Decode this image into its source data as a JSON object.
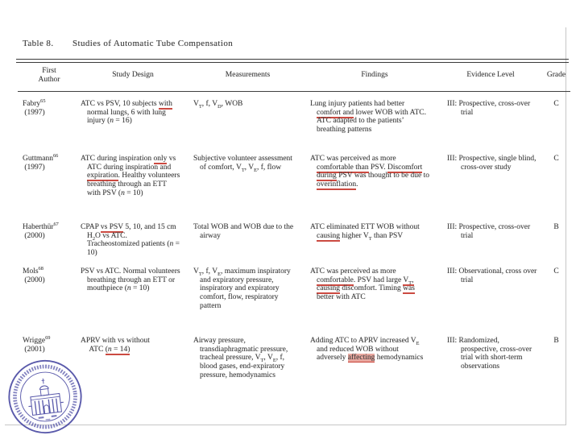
{
  "title": {
    "label": "Table 8.",
    "text": "Studies of Automatic Tube Compensation"
  },
  "table": {
    "headers": {
      "author": "First\nAuthor",
      "design": "Study Design",
      "measurements": "Measurements",
      "findings": "Findings",
      "evidence": "Evidence Level",
      "grade": "Grade"
    },
    "rows": [
      {
        "author": "Fabry^65^\n (1997)",
        "design": "ATC vs PSV, 10 subjects ~with~ normal lungs, 6 with lung injury (*n* = 16)",
        "measurements": "V{T}, f, V{D}, WOB",
        "findings": "Lung injury patients had better ~comfort and~ lower WOB with ATC. ATC adapted to the patients’ breathing patterns",
        "evidence": "III: Prospective, cross-over trial",
        "grade": "C"
      },
      {
        "author": "Guttmann^66^\n (1997)",
        "design": "ATC during inspiration ~only~ vs ATC during inspiration and ~expiration~. Healthy volunteers breathing through an ETT with PSV (*n* = 10)",
        "measurements": "Subjective volunteer assessment of comfort, V{T}, V{E}, f, flow",
        "findings": "ATC was perceived as more ~comfortable than~ PSV. ~Discomfort during~ PSV was thought to be due to ~overinflation~.",
        "evidence": "III: Prospective, single blind, cross-over study",
        "grade": "C"
      },
      {
        "author": "Haberthür^67^\n (2000)",
        "design": "CPAP ~vs PSV~ 5, 10, and 15 cm H{2}O vs ATC. Tracheostomized patients (*n* = 10)",
        "measurements": "Total WOB and WOB due to the airway",
        "findings": "ATC eliminated ETT WOB without ~causing~ higher V{T} than PSV",
        "evidence": "III: Prospective, cross-over trial",
        "grade": "B"
      },
      {
        "author": "Mols^68^\n (2000)",
        "design": "PSV vs ATC. Normal volunteers breathing through an ETT or mouthpiece (*n* = 10)",
        "measurements": "V{T}, f, V{E}, maximum inspiratory and expiratory pressure, inspiratory and expiratory comfort, flow, respiratory pattern",
        "findings": "ATC was perceived as more ~comfortable~. PSV had large ~V{T}, causing~ discomfort. Timing ~was~ better with ATC",
        "evidence": "III: Observational, cross over trial",
        "grade": "C"
      },
      {
        "author": "Wrigge^69^\n (2001)",
        "design": "APRV with vs without\n ATC ~(*n* = 14)~",
        "measurements": "Airway pressure, transdiaphragmatic pressure, tracheal pressure, V{T}, V{E}, f, blood gases, end-expiratory pressure, hemodynamics",
        "findings": "Adding ATC to APRV increased V{E} and reduced WOB without adversely @@affecting@@ hemodynamics",
        "evidence": "III: Randomized, prospective, cross-over trial with short-term observations",
        "grade": "B"
      }
    ]
  },
  "annotations": {
    "pen_color": "#c22a20",
    "style": "hand-drawn red underlines and one red highlight"
  },
  "seal": {
    "name": "university-seal",
    "color": "#4444a0"
  },
  "colors": {
    "text": "#3d3d3d",
    "rule": "#3a3a3a",
    "page_border": "#c6c6c6",
    "background": "#ffffff"
  }
}
